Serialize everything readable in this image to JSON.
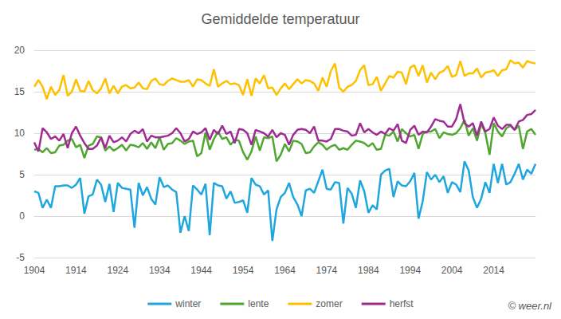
{
  "chart_data": {
    "type": "line",
    "title": "Gemiddelde temperatuur",
    "categories": [
      "1904",
      null,
      null,
      null,
      null,
      null,
      null,
      null,
      null,
      null,
      "1914",
      null,
      null,
      null,
      null,
      null,
      null,
      null,
      null,
      null,
      "1924",
      null,
      null,
      null,
      null,
      null,
      null,
      null,
      null,
      null,
      "1934",
      null,
      null,
      null,
      null,
      null,
      null,
      null,
      null,
      null,
      "1944",
      null,
      null,
      null,
      null,
      null,
      null,
      null,
      null,
      null,
      "1954",
      null,
      null,
      null,
      null,
      null,
      null,
      null,
      null,
      null,
      "1964",
      null,
      null,
      null,
      null,
      null,
      null,
      null,
      null,
      null,
      "1974",
      null,
      null,
      null,
      null,
      null,
      null,
      null,
      null,
      null,
      "1984",
      null,
      null,
      null,
      null,
      null,
      null,
      null,
      null,
      null,
      "1994",
      null,
      null,
      null,
      null,
      null,
      null,
      null,
      null,
      null,
      "2004",
      null,
      null,
      null,
      null,
      null,
      null,
      null,
      null,
      null,
      "2014",
      null,
      null,
      null,
      null,
      null,
      null,
      null,
      null,
      null,
      null
    ],
    "series": [
      {
        "name": "winter",
        "color": "#1fa6df",
        "values": [
          3.0,
          2.8,
          1.0,
          2.0,
          1.0,
          3.6,
          3.6,
          3.7,
          3.7,
          3.4,
          3.8,
          4.6,
          0.3,
          2.4,
          2.6,
          4.4,
          3.8,
          1.7,
          3.9,
          0.5,
          4.0,
          3.4,
          3.3,
          3.2,
          -1.4,
          4.0,
          2.5,
          3.5,
          2.1,
          1.4,
          4.7,
          3.5,
          3.7,
          3.2,
          2.9,
          -2.0,
          0.0,
          -1.8,
          3.7,
          3.2,
          2.6,
          3.9,
          -2.3,
          4.0,
          3.7,
          3.6,
          2.1,
          3.0,
          1.6,
          1.7,
          1.9,
          0.4,
          4.6,
          3.8,
          3.6,
          2.6,
          3.1,
          -3.0,
          0.8,
          2.3,
          2.8,
          4.0,
          2.3,
          1.4,
          0.0,
          3.1,
          3.3,
          2.8,
          4.2,
          5.6,
          3.3,
          3.2,
          4.1,
          4.0,
          -0.9,
          3.4,
          2.7,
          1.0,
          4.3,
          3.0,
          0.4,
          1.3,
          0.8,
          5.0,
          5.5,
          5.7,
          2.3,
          4.2,
          3.7,
          3.6,
          4.2,
          5.2,
          -0.3,
          1.8,
          5.3,
          4.4,
          5.0,
          4.1,
          4.8,
          2.8,
          4.1,
          3.8,
          2.9,
          6.6,
          5.5,
          2.3,
          1.0,
          2.1,
          4.1,
          2.8,
          6.3,
          4.0,
          6.3,
          3.8,
          4.1,
          5.1,
          6.3,
          4.4,
          5.6,
          5.1,
          6.3
        ]
      },
      {
        "name": "lente",
        "color": "#4ea72e",
        "values": [
          8.0,
          8.1,
          7.7,
          8.2,
          7.6,
          7.7,
          8.5,
          8.6,
          9.1,
          9.3,
          8.3,
          8.6,
          7.0,
          8.5,
          8.7,
          9.6,
          9.5,
          7.9,
          8.4,
          7.9,
          8.2,
          8.6,
          7.9,
          8.6,
          8.5,
          8.3,
          8.8,
          8.1,
          8.9,
          8.2,
          9.5,
          8.0,
          8.7,
          8.8,
          9.4,
          9.1,
          8.7,
          9.0,
          9.1,
          7.2,
          7.6,
          10.1,
          8.0,
          9.3,
          10.2,
          9.3,
          9.5,
          8.6,
          9.2,
          9.1,
          7.7,
          6.8,
          7.8,
          9.6,
          7.9,
          9.5,
          9.4,
          9.6,
          6.6,
          7.4,
          8.7,
          7.8,
          9.1,
          9.0,
          8.7,
          7.6,
          7.7,
          8.4,
          8.9,
          8.6,
          8.0,
          8.4,
          8.6,
          8.0,
          8.2,
          8.0,
          8.6,
          9.1,
          9.0,
          8.8,
          8.4,
          8.8,
          8.0,
          8.1,
          9.8,
          9.7,
          10.2,
          9.0,
          10.5,
          10.0,
          9.6,
          9.8,
          8.1,
          9.9,
          10.2,
          10.2,
          10.5,
          9.4,
          10.1,
          9.9,
          9.8,
          10.0,
          10.6,
          11.6,
          9.7,
          10.6,
          9.1,
          11.1,
          10.0,
          7.4,
          11.2,
          10.2,
          9.6,
          10.6,
          10.9,
          10.4,
          10.9,
          8.1,
          10.2,
          10.5,
          9.8
        ]
      },
      {
        "name": "zomer",
        "color": "#ffc000",
        "values": [
          15.6,
          16.4,
          15.6,
          14.1,
          15.6,
          14.6,
          15.2,
          17.0,
          14.5,
          15.0,
          16.5,
          15.1,
          15.0,
          16.3,
          15.2,
          14.8,
          15.4,
          16.6,
          14.8,
          15.7,
          14.8,
          15.6,
          15.8,
          15.4,
          15.5,
          16.1,
          15.4,
          15.3,
          16.3,
          16.6,
          15.9,
          15.8,
          16.3,
          16.6,
          16.4,
          16.2,
          16.2,
          16.4,
          15.6,
          16.5,
          16.4,
          16.0,
          15.7,
          17.7,
          15.6,
          16.0,
          16.3,
          15.9,
          16.0,
          15.8,
          14.6,
          16.5,
          14.5,
          16.6,
          16.0,
          17.0,
          15.4,
          15.5,
          14.6,
          15.4,
          16.0,
          15.3,
          15.9,
          16.5,
          16.0,
          16.4,
          16.3,
          16.0,
          15.1,
          16.7,
          15.6,
          17.5,
          18.4,
          15.5,
          15.0,
          15.6,
          15.8,
          16.3,
          17.6,
          18.2,
          15.8,
          15.9,
          16.8,
          15.1,
          16.0,
          16.9,
          16.7,
          17.4,
          17.3,
          15.9,
          17.9,
          18.2,
          16.9,
          18.2,
          16.1,
          17.3,
          16.5,
          17.3,
          17.5,
          18.1,
          16.8,
          17.0,
          18.7,
          16.9,
          17.2,
          17.2,
          17.8,
          16.7,
          17.3,
          17.4,
          17.6,
          16.9,
          17.6,
          17.7,
          18.8,
          18.4,
          18.5,
          17.9,
          18.7,
          18.5,
          18.4
        ]
      },
      {
        "name": "herfst",
        "color": "#a02b93",
        "values": [
          8.9,
          7.8,
          10.6,
          10.1,
          9.3,
          9.6,
          9.1,
          9.9,
          8.2,
          10.0,
          10.8,
          9.7,
          8.8,
          8.1,
          8.1,
          8.5,
          9.5,
          8.2,
          9.7,
          8.9,
          9.1,
          9.5,
          9.0,
          9.9,
          10.3,
          10.0,
          10.5,
          9.0,
          9.7,
          9.5,
          9.5,
          9.6,
          9.7,
          10.0,
          10.6,
          10.0,
          9.0,
          9.3,
          10.2,
          9.9,
          10.1,
          10.6,
          9.2,
          10.4,
          9.9,
          10.9,
          9.9,
          10.2,
          8.8,
          10.5,
          10.4,
          10.0,
          8.6,
          10.4,
          10.2,
          10.0,
          9.6,
          10.4,
          9.5,
          10.0,
          9.8,
          8.6,
          9.8,
          10.4,
          10.5,
          10.4,
          10.0,
          10.8,
          9.1,
          9.1,
          9.0,
          9.3,
          10.5,
          10.5,
          10.3,
          10.2,
          9.7,
          9.8,
          11.2,
          10.1,
          10.5,
          10.1,
          9.8,
          10.2,
          9.9,
          10.6,
          10.3,
          11.1,
          9.1,
          8.8,
          10.4,
          10.9,
          9.8,
          10.2,
          10.1,
          10.8,
          11.7,
          11.5,
          11.4,
          10.8,
          10.8,
          11.7,
          13.5,
          11.2,
          10.8,
          11.2,
          9.7,
          11.4,
          10.2,
          10.5,
          11.9,
          10.9,
          10.5,
          11.0,
          11.0,
          10.4,
          11.4,
          11.6,
          12.2,
          12.3,
          12.8
        ]
      }
    ],
    "ylim": [
      -5,
      20
    ],
    "yticks": [
      -5,
      0,
      5,
      10,
      15,
      20
    ],
    "grid": true,
    "legend": "bottom",
    "annotations": [
      "© weer.nl"
    ]
  }
}
